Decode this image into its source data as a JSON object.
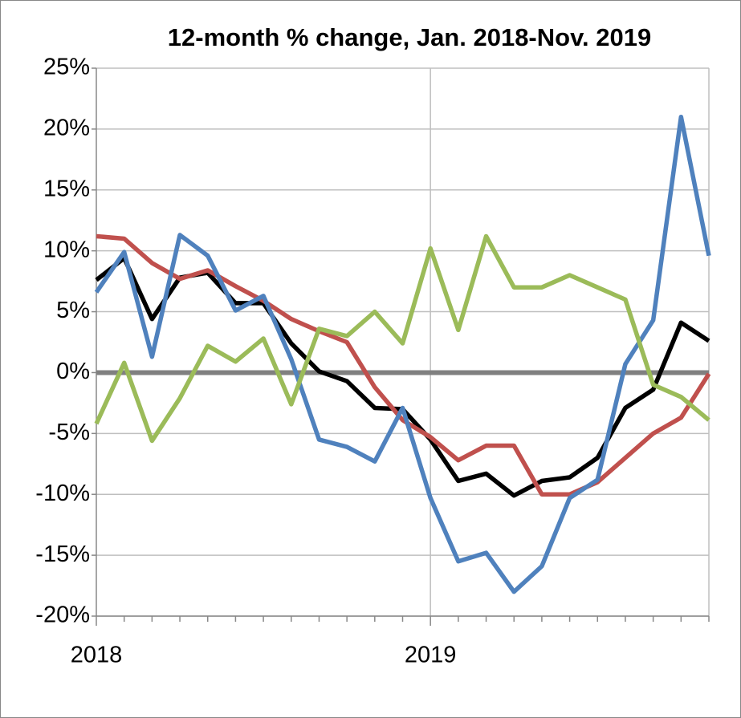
{
  "chart_data": {
    "type": "line",
    "title": "12-month % change, Jan. 2018-Nov. 2019",
    "categories": [
      "2018",
      null,
      null,
      null,
      null,
      null,
      null,
      null,
      null,
      null,
      null,
      null,
      "2019",
      null,
      null,
      null,
      null,
      null,
      null,
      null,
      null,
      null,
      null
    ],
    "series": [
      {
        "color": "#000000",
        "values": [
          7.6,
          9.4,
          4.4,
          7.8,
          8.2,
          5.7,
          5.7,
          2.4,
          0.1,
          -0.7,
          -2.9,
          -3.0,
          -5.5,
          -8.9,
          -8.3,
          -10.1,
          -8.9,
          -8.6,
          -7.0,
          -2.9,
          -1.4,
          4.1,
          2.6
        ]
      },
      {
        "color": "#c0504d",
        "values": [
          11.2,
          11.0,
          9.0,
          7.7,
          8.4,
          7.1,
          5.9,
          4.4,
          3.4,
          2.5,
          -1.2,
          -3.9,
          -5.3,
          -7.2,
          -6.0,
          -6.0,
          -10.0,
          -10.0,
          -9.0,
          -7.0,
          -5.0,
          -3.7,
          -0.1
        ]
      },
      {
        "color": "#4f81bd",
        "values": [
          6.6,
          9.9,
          1.3,
          11.3,
          9.6,
          5.1,
          6.3,
          1.1,
          -5.5,
          -6.1,
          -7.3,
          -2.9,
          -10.3,
          -15.5,
          -14.8,
          -18.0,
          -15.9,
          -10.3,
          -8.8,
          0.7,
          4.3,
          21.0,
          9.6
        ]
      },
      {
        "color": "#9bbb59",
        "values": [
          -4.2,
          0.8,
          -5.6,
          -2.1,
          2.2,
          0.9,
          2.8,
          -2.6,
          3.6,
          3.0,
          5.0,
          2.4,
          10.2,
          3.5,
          11.2,
          7.0,
          7.0,
          8.0,
          7.0,
          6.0,
          -1.0,
          -2.0,
          -3.9
        ]
      }
    ],
    "ylim": [
      -20,
      25
    ],
    "yticks": [
      {
        "value": -20,
        "label": "-20%"
      },
      {
        "value": -15,
        "label": "-15%"
      },
      {
        "value": -10,
        "label": "-10%"
      },
      {
        "value": -5,
        "label": "-5%"
      },
      {
        "value": 0,
        "label": "0%"
      },
      {
        "value": 5,
        "label": "5%"
      },
      {
        "value": 10,
        "label": "10%"
      },
      {
        "value": 15,
        "label": "15%"
      },
      {
        "value": 20,
        "label": "20%"
      },
      {
        "value": 25,
        "label": "25%"
      }
    ],
    "grid": true
  }
}
